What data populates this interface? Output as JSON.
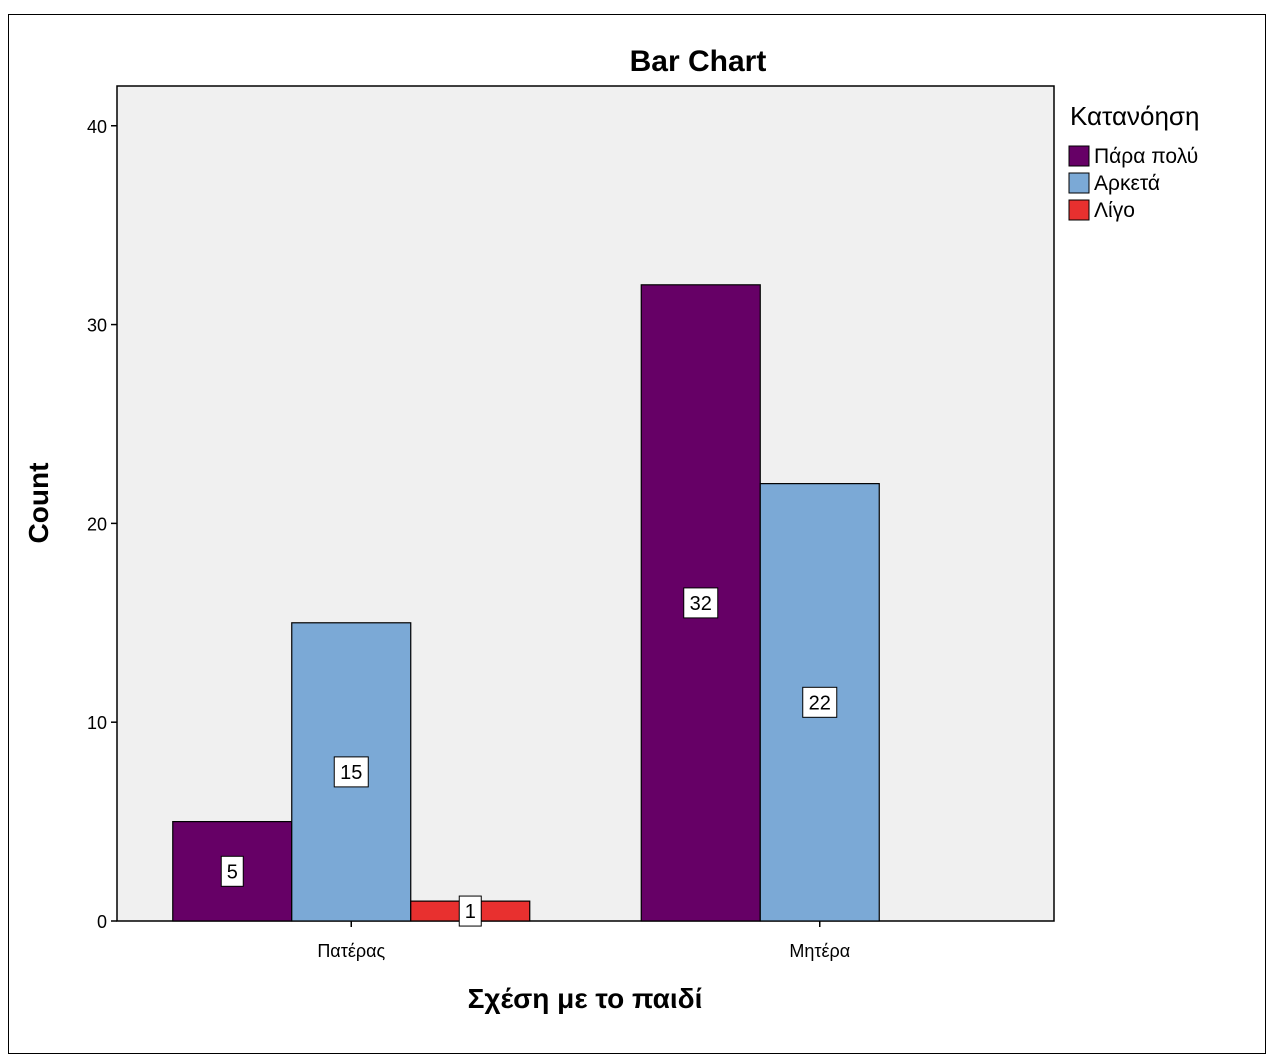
{
  "chart_data": {
    "type": "bar",
    "title": "Bar Chart",
    "xlabel": "Σχέση με το παιδί",
    "ylabel": "Count",
    "categories": [
      "Πατέρας",
      "Μητέρα"
    ],
    "legend_title": "Κατανόηση",
    "legend_position": "right",
    "ylim": [
      0,
      42
    ],
    "yticks": [
      0,
      10,
      20,
      30,
      40
    ],
    "grid": false,
    "background_color": "#f0f0f0",
    "series": [
      {
        "name": "Πάρα πολύ",
        "color": "#660066",
        "values": [
          5,
          32
        ]
      },
      {
        "name": "Αρκετά",
        "color": "#7ba9d6",
        "values": [
          15,
          22
        ]
      },
      {
        "name": "Λίγο",
        "color": "#e8302f",
        "values": [
          1,
          null
        ]
      }
    ]
  }
}
